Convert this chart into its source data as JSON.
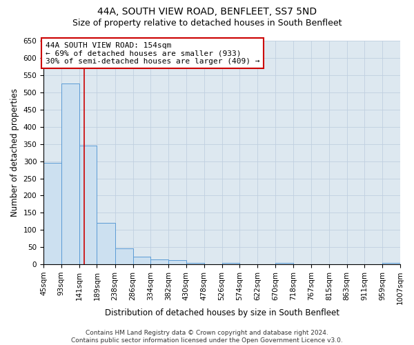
{
  "title": "44A, SOUTH VIEW ROAD, BENFLEET, SS7 5ND",
  "subtitle": "Size of property relative to detached houses in South Benfleet",
  "xlabel": "Distribution of detached houses by size in South Benfleet",
  "ylabel": "Number of detached properties",
  "footer": "Contains HM Land Registry data © Crown copyright and database right 2024.\nContains public sector information licensed under the Open Government Licence v3.0.",
  "bin_edges": [
    45,
    93,
    141,
    189,
    238,
    286,
    334,
    382,
    430,
    478,
    526,
    574,
    622,
    670,
    718,
    767,
    815,
    863,
    911,
    959,
    1007
  ],
  "bin_counts": [
    295,
    525,
    345,
    120,
    47,
    22,
    14,
    12,
    5,
    0,
    5,
    0,
    0,
    5,
    0,
    0,
    0,
    0,
    0,
    5
  ],
  "bar_color": "#cce0f0",
  "bar_edge_color": "#5b9bd5",
  "property_size": 154,
  "vline_color": "#cc0000",
  "annotation_line1": "44A SOUTH VIEW ROAD: 154sqm",
  "annotation_line2": "← 69% of detached houses are smaller (933)",
  "annotation_line3": "30% of semi-detached houses are larger (409) →",
  "annotation_box_color": "#ffffff",
  "annotation_box_edge": "#cc0000",
  "ylim": [
    0,
    650
  ],
  "yticks": [
    0,
    50,
    100,
    150,
    200,
    250,
    300,
    350,
    400,
    450,
    500,
    550,
    600,
    650
  ],
  "bg_color": "#dde8f0",
  "fig_bg_color": "#ffffff",
  "title_fontsize": 10,
  "subtitle_fontsize": 9,
  "axis_label_fontsize": 8.5,
  "tick_fontsize": 7.5,
  "annotation_fontsize": 8,
  "footer_fontsize": 6.5
}
